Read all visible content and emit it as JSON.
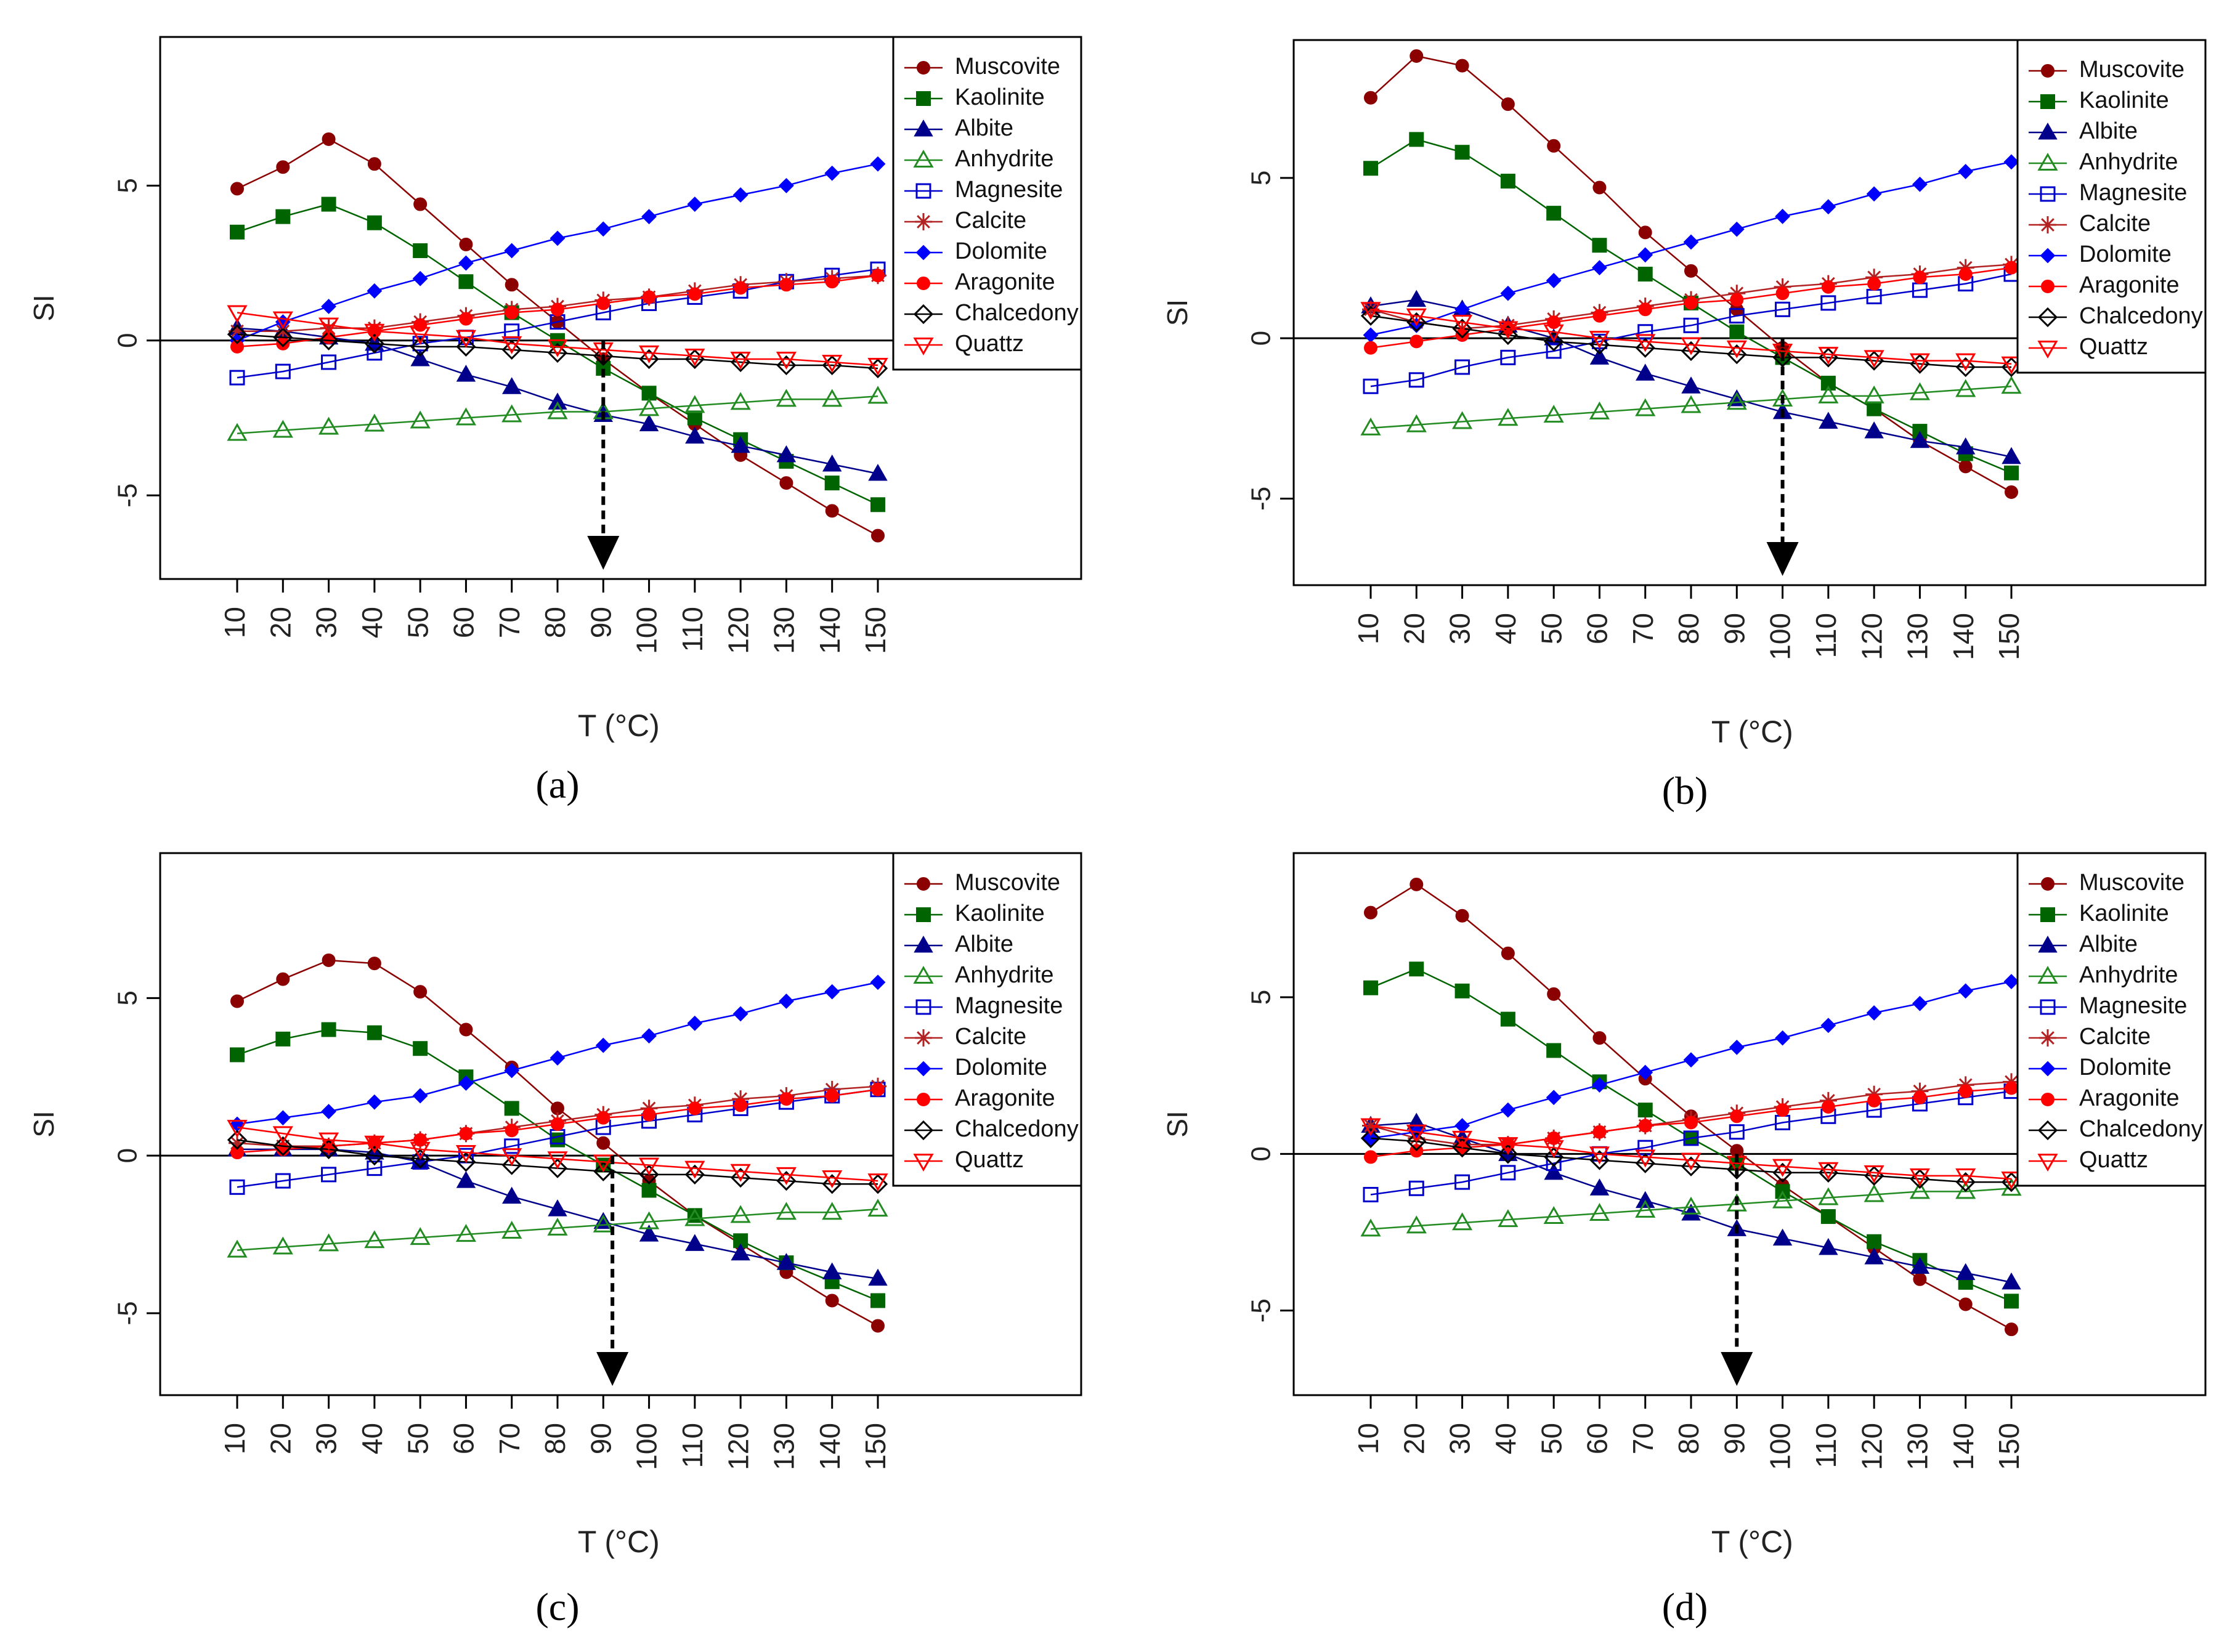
{
  "figure": {
    "panels": [
      "a",
      "b",
      "c",
      "d"
    ]
  },
  "styles": {
    "Muscovite": {
      "color": "#8b0000",
      "marker": "filled-circle"
    },
    "Kaolinite": {
      "color": "#006400",
      "marker": "filled-square"
    },
    "Albite": {
      "color": "#00008b",
      "marker": "filled-triangle"
    },
    "Anhydrite": {
      "color": "#228b22",
      "marker": "open-triangle"
    },
    "Magnesite": {
      "color": "#0000cd",
      "marker": "open-square"
    },
    "Calcite": {
      "color": "#b22222",
      "marker": "asterisk"
    },
    "Dolomite": {
      "color": "#0000ff",
      "marker": "filled-diamond"
    },
    "Aragonite": {
      "color": "#ff0000",
      "marker": "filled-circle"
    },
    "Chalcedony": {
      "color": "#000000",
      "marker": "open-diamond"
    },
    "Quattz": {
      "color": "#ff0000",
      "marker": "open-down-triangle"
    }
  },
  "chart_data": [
    {
      "panel": "a",
      "caption": "(a)",
      "type": "line",
      "xlabel": "T (°C)",
      "ylabel": "SI",
      "x": [
        10,
        20,
        30,
        40,
        50,
        60,
        70,
        80,
        90,
        100,
        110,
        120,
        130,
        140,
        150
      ],
      "yticks": [
        -5,
        0,
        5
      ],
      "ylim": [
        -7.7,
        9.8
      ],
      "marker_x": 90,
      "legend_position": "top-right",
      "series": [
        {
          "name": "Muscovite",
          "values": [
            4.9,
            5.6,
            6.5,
            5.7,
            4.4,
            3.1,
            1.8,
            0.6,
            -0.6,
            -1.7,
            -2.7,
            -3.7,
            -4.6,
            -5.5,
            -6.3
          ]
        },
        {
          "name": "Kaolinite",
          "values": [
            3.5,
            4.0,
            4.4,
            3.8,
            2.9,
            1.9,
            0.9,
            0.0,
            -0.9,
            -1.7,
            -2.5,
            -3.2,
            -3.9,
            -4.6,
            -5.3
          ]
        },
        {
          "name": "Albite",
          "values": [
            0.4,
            0.3,
            0.1,
            -0.1,
            -0.6,
            -1.1,
            -1.5,
            -2.0,
            -2.4,
            -2.7,
            -3.1,
            -3.4,
            -3.7,
            -4.0,
            -4.3
          ]
        },
        {
          "name": "Anhydrite",
          "values": [
            -3.0,
            -2.9,
            -2.8,
            -2.7,
            -2.6,
            -2.5,
            -2.4,
            -2.3,
            -2.3,
            -2.2,
            -2.1,
            -2.0,
            -1.9,
            -1.9,
            -1.8
          ]
        },
        {
          "name": "Magnesite",
          "values": [
            -1.2,
            -1.0,
            -0.7,
            -0.4,
            -0.1,
            0.1,
            0.3,
            0.6,
            0.9,
            1.2,
            1.4,
            1.6,
            1.9,
            2.1,
            2.3
          ]
        },
        {
          "name": "Calcite",
          "values": [
            0.3,
            0.3,
            0.4,
            0.4,
            0.6,
            0.8,
            1.0,
            1.1,
            1.3,
            1.4,
            1.6,
            1.8,
            1.9,
            2.0,
            2.1
          ]
        },
        {
          "name": "Dolomite",
          "values": [
            0.0,
            0.6,
            1.1,
            1.6,
            2.0,
            2.5,
            2.9,
            3.3,
            3.6,
            4.0,
            4.4,
            4.7,
            5.0,
            5.4,
            5.7
          ]
        },
        {
          "name": "Aragonite",
          "values": [
            -0.2,
            -0.1,
            0.1,
            0.3,
            0.5,
            0.7,
            0.9,
            1.0,
            1.2,
            1.4,
            1.5,
            1.7,
            1.8,
            1.9,
            2.1
          ]
        },
        {
          "name": "Chalcedony",
          "values": [
            0.2,
            0.1,
            0.0,
            -0.1,
            -0.2,
            -0.2,
            -0.3,
            -0.4,
            -0.5,
            -0.6,
            -0.6,
            -0.7,
            -0.8,
            -0.8,
            -0.9
          ]
        },
        {
          "name": "Quattz",
          "values": [
            0.9,
            0.7,
            0.5,
            0.3,
            0.2,
            0.1,
            -0.1,
            -0.2,
            -0.3,
            -0.4,
            -0.5,
            -0.6,
            -0.6,
            -0.7,
            -0.8
          ]
        }
      ]
    },
    {
      "panel": "b",
      "caption": "(b)",
      "type": "line",
      "xlabel": "T (°C)",
      "ylabel": "SI",
      "x": [
        10,
        20,
        30,
        40,
        50,
        60,
        70,
        80,
        90,
        100,
        110,
        120,
        130,
        140,
        150
      ],
      "yticks": [
        -5,
        0,
        5
      ],
      "ylim": [
        -7.7,
        9.3
      ],
      "marker_x": 100,
      "legend_position": "top-right",
      "series": [
        {
          "name": "Muscovite",
          "values": [
            7.5,
            8.8,
            8.5,
            7.3,
            6.0,
            4.7,
            3.3,
            2.1,
            0.9,
            -0.3,
            -1.4,
            -2.2,
            -3.2,
            -4.0,
            -4.8
          ]
        },
        {
          "name": "Kaolinite",
          "values": [
            5.3,
            6.2,
            5.8,
            4.9,
            3.9,
            2.9,
            2.0,
            1.1,
            0.2,
            -0.6,
            -1.4,
            -2.2,
            -2.9,
            -3.6,
            -4.2
          ]
        },
        {
          "name": "Albite",
          "values": [
            1.0,
            1.2,
            0.9,
            0.4,
            0.0,
            -0.6,
            -1.1,
            -1.5,
            -1.9,
            -2.3,
            -2.6,
            -2.9,
            -3.2,
            -3.4,
            -3.7
          ]
        },
        {
          "name": "Anhydrite",
          "values": [
            -2.8,
            -2.7,
            -2.6,
            -2.5,
            -2.4,
            -2.3,
            -2.2,
            -2.1,
            -2.0,
            -1.9,
            -1.8,
            -1.8,
            -1.7,
            -1.6,
            -1.5
          ]
        },
        {
          "name": "Magnesite",
          "values": [
            -1.5,
            -1.3,
            -0.9,
            -0.6,
            -0.4,
            -0.1,
            0.2,
            0.4,
            0.7,
            0.9,
            1.1,
            1.3,
            1.5,
            1.7,
            2.0
          ]
        },
        {
          "name": "Calcite",
          "values": [
            0.9,
            0.5,
            0.3,
            0.4,
            0.6,
            0.8,
            1.0,
            1.2,
            1.4,
            1.6,
            1.7,
            1.9,
            2.0,
            2.2,
            2.3
          ]
        },
        {
          "name": "Dolomite",
          "values": [
            0.1,
            0.4,
            0.9,
            1.4,
            1.8,
            2.2,
            2.6,
            3.0,
            3.4,
            3.8,
            4.1,
            4.5,
            4.8,
            5.2,
            5.5
          ]
        },
        {
          "name": "Aragonite",
          "values": [
            -0.3,
            -0.1,
            0.1,
            0.3,
            0.5,
            0.7,
            0.9,
            1.1,
            1.2,
            1.4,
            1.6,
            1.7,
            1.9,
            2.0,
            2.2
          ]
        },
        {
          "name": "Chalcedony",
          "values": [
            0.7,
            0.5,
            0.3,
            0.1,
            -0.1,
            -0.2,
            -0.3,
            -0.4,
            -0.5,
            -0.6,
            -0.6,
            -0.7,
            -0.8,
            -0.9,
            -0.9
          ]
        },
        {
          "name": "Quattz",
          "values": [
            0.9,
            0.7,
            0.5,
            0.3,
            0.2,
            0.0,
            -0.1,
            -0.2,
            -0.3,
            -0.4,
            -0.5,
            -0.6,
            -0.7,
            -0.7,
            -0.8
          ]
        }
      ]
    },
    {
      "panel": "c",
      "caption": "(c)",
      "type": "line",
      "xlabel": "T (°C)",
      "ylabel": "SI",
      "x": [
        10,
        20,
        30,
        40,
        50,
        60,
        70,
        80,
        90,
        100,
        110,
        120,
        130,
        140,
        150
      ],
      "yticks": [
        -5,
        0,
        5
      ],
      "ylim": [
        -7.6,
        9.6
      ],
      "marker_x": 92,
      "legend_position": "top-right",
      "series": [
        {
          "name": "Muscovite",
          "values": [
            4.9,
            5.6,
            6.2,
            6.1,
            5.2,
            4.0,
            2.8,
            1.5,
            0.4,
            -0.8,
            -1.9,
            -2.8,
            -3.7,
            -4.6,
            -5.4
          ]
        },
        {
          "name": "Kaolinite",
          "values": [
            3.2,
            3.7,
            4.0,
            3.9,
            3.4,
            2.5,
            1.5,
            0.5,
            -0.3,
            -1.1,
            -1.9,
            -2.7,
            -3.4,
            -4.0,
            -4.6
          ]
        },
        {
          "name": "Albite",
          "values": [
            0.2,
            0.2,
            0.2,
            0.1,
            -0.2,
            -0.8,
            -1.3,
            -1.7,
            -2.1,
            -2.5,
            -2.8,
            -3.1,
            -3.4,
            -3.7,
            -3.9
          ]
        },
        {
          "name": "Anhydrite",
          "values": [
            -3.0,
            -2.9,
            -2.8,
            -2.7,
            -2.6,
            -2.5,
            -2.4,
            -2.3,
            -2.2,
            -2.1,
            -2.0,
            -1.9,
            -1.8,
            -1.8,
            -1.7
          ]
        },
        {
          "name": "Magnesite",
          "values": [
            -1.0,
            -0.8,
            -0.6,
            -0.4,
            -0.2,
            0.0,
            0.3,
            0.6,
            0.9,
            1.1,
            1.3,
            1.5,
            1.7,
            1.9,
            2.1
          ]
        },
        {
          "name": "Calcite",
          "values": [
            0.4,
            0.3,
            0.3,
            0.4,
            0.5,
            0.7,
            0.9,
            1.1,
            1.3,
            1.5,
            1.6,
            1.8,
            1.9,
            2.1,
            2.2
          ]
        },
        {
          "name": "Dolomite",
          "values": [
            1.0,
            1.2,
            1.4,
            1.7,
            1.9,
            2.3,
            2.7,
            3.1,
            3.5,
            3.8,
            4.2,
            4.5,
            4.9,
            5.2,
            5.5
          ]
        },
        {
          "name": "Aragonite",
          "values": [
            0.1,
            0.2,
            0.3,
            0.4,
            0.5,
            0.7,
            0.8,
            1.0,
            1.2,
            1.3,
            1.5,
            1.6,
            1.8,
            1.9,
            2.1
          ]
        },
        {
          "name": "Chalcedony",
          "values": [
            0.5,
            0.3,
            0.2,
            0.0,
            -0.1,
            -0.2,
            -0.3,
            -0.4,
            -0.5,
            -0.6,
            -0.6,
            -0.7,
            -0.8,
            -0.9,
            -0.9
          ]
        },
        {
          "name": "Quattz",
          "values": [
            0.9,
            0.7,
            0.5,
            0.4,
            0.2,
            0.1,
            0.0,
            -0.1,
            -0.2,
            -0.3,
            -0.4,
            -0.5,
            -0.6,
            -0.7,
            -0.8
          ]
        }
      ]
    },
    {
      "panel": "d",
      "caption": "(d)",
      "type": "line",
      "xlabel": "T (°C)",
      "ylabel": "SI",
      "x": [
        10,
        20,
        30,
        40,
        50,
        60,
        70,
        80,
        90,
        100,
        110,
        120,
        130,
        140,
        150
      ],
      "yticks": [
        -5,
        0,
        5
      ],
      "ylim": [
        -7.7,
        9.6
      ],
      "marker_x": 90,
      "legend_position": "top-right",
      "series": [
        {
          "name": "Muscovite",
          "values": [
            7.7,
            8.6,
            7.6,
            6.4,
            5.1,
            3.7,
            2.4,
            1.2,
            0.1,
            -1.0,
            -2.0,
            -3.0,
            -4.0,
            -4.8,
            -5.6
          ]
        },
        {
          "name": "Kaolinite",
          "values": [
            5.3,
            5.9,
            5.2,
            4.3,
            3.3,
            2.3,
            1.4,
            0.5,
            -0.3,
            -1.2,
            -2.0,
            -2.8,
            -3.4,
            -4.1,
            -4.7
          ]
        },
        {
          "name": "Albite",
          "values": [
            0.9,
            1.0,
            0.5,
            0.0,
            -0.6,
            -1.1,
            -1.5,
            -1.9,
            -2.4,
            -2.7,
            -3.0,
            -3.3,
            -3.6,
            -3.8,
            -4.1
          ]
        },
        {
          "name": "Anhydrite",
          "values": [
            -2.4,
            -2.3,
            -2.2,
            -2.1,
            -2.0,
            -1.9,
            -1.8,
            -1.7,
            -1.6,
            -1.5,
            -1.4,
            -1.3,
            -1.2,
            -1.2,
            -1.1
          ]
        },
        {
          "name": "Magnesite",
          "values": [
            -1.3,
            -1.1,
            -0.9,
            -0.6,
            -0.3,
            0.0,
            0.2,
            0.5,
            0.7,
            1.0,
            1.2,
            1.4,
            1.6,
            1.8,
            2.0
          ]
        },
        {
          "name": "Calcite",
          "values": [
            0.9,
            0.5,
            0.3,
            0.3,
            0.5,
            0.7,
            0.9,
            1.1,
            1.3,
            1.5,
            1.7,
            1.9,
            2.0,
            2.2,
            2.3
          ]
        },
        {
          "name": "Dolomite",
          "values": [
            0.5,
            0.7,
            0.9,
            1.4,
            1.8,
            2.2,
            2.6,
            3.0,
            3.4,
            3.7,
            4.1,
            4.5,
            4.8,
            5.2,
            5.5
          ]
        },
        {
          "name": "Aragonite",
          "values": [
            -0.1,
            0.1,
            0.2,
            0.3,
            0.5,
            0.7,
            0.9,
            1.0,
            1.2,
            1.4,
            1.5,
            1.7,
            1.8,
            2.0,
            2.1
          ]
        },
        {
          "name": "Chalcedony",
          "values": [
            0.5,
            0.4,
            0.2,
            0.0,
            -0.1,
            -0.2,
            -0.3,
            -0.4,
            -0.5,
            -0.6,
            -0.6,
            -0.7,
            -0.8,
            -0.9,
            -0.9
          ]
        },
        {
          "name": "Quattz",
          "values": [
            0.9,
            0.7,
            0.5,
            0.3,
            0.2,
            0.0,
            -0.1,
            -0.2,
            -0.3,
            -0.4,
            -0.5,
            -0.6,
            -0.7,
            -0.7,
            -0.8
          ]
        }
      ]
    }
  ]
}
